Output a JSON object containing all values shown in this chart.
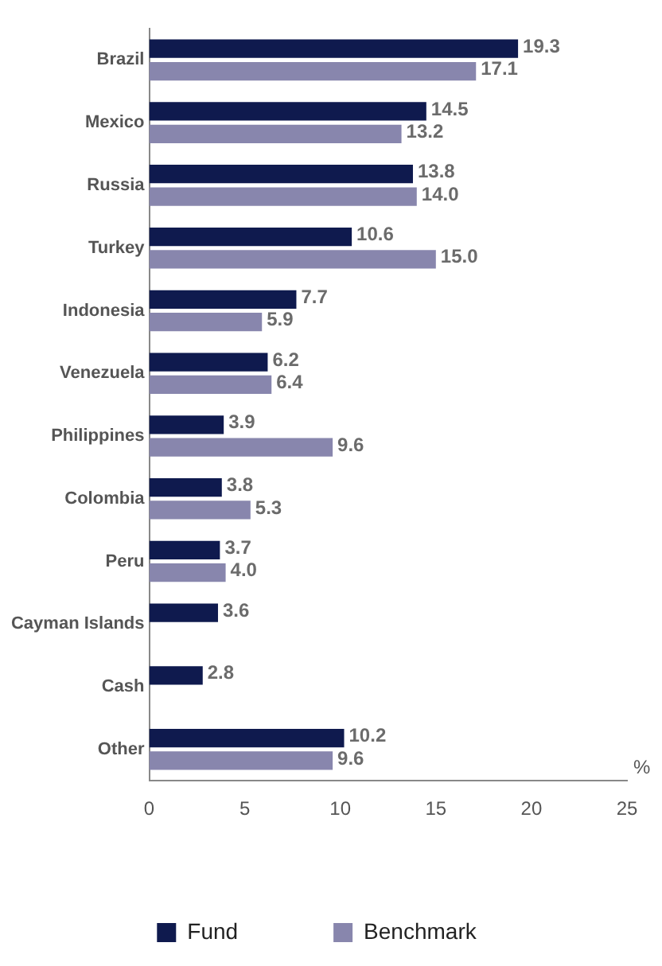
{
  "chart_data": {
    "type": "bar",
    "orientation": "horizontal",
    "xlabel": "%",
    "categories": [
      "Brazil",
      "Mexico",
      "Russia",
      "Turkey",
      "Indonesia",
      "Venezuela",
      "Philippines",
      "Colombia",
      "Peru",
      "Cayman Islands",
      "Cash",
      "Other"
    ],
    "series": [
      {
        "name": "Fund",
        "color": "#0f1a4e",
        "values": [
          19.3,
          14.5,
          13.8,
          10.6,
          7.7,
          6.2,
          3.9,
          3.8,
          3.7,
          3.6,
          2.8,
          10.2
        ],
        "value_labels": [
          "19.3",
          "14.5",
          "13.8",
          "10.6",
          "7.7",
          "6.2",
          "3.9",
          "3.8",
          "3.7",
          "3.6",
          "2.8",
          "10.2"
        ]
      },
      {
        "name": "Benchmark",
        "color": "#8886ad",
        "values": [
          17.1,
          13.2,
          14.0,
          15.0,
          5.9,
          6.4,
          9.6,
          5.3,
          4.0,
          null,
          null,
          9.6
        ],
        "value_labels": [
          "17.1",
          "13.2",
          "14.0",
          "15.0",
          "5.9",
          "6.4",
          "9.6",
          "5.3",
          "4.0",
          null,
          null,
          "9.6"
        ]
      }
    ],
    "xlim": [
      0,
      25
    ],
    "xticks": [
      0,
      5,
      10,
      15,
      20,
      25
    ],
    "grid": false,
    "legend": "bottom"
  }
}
